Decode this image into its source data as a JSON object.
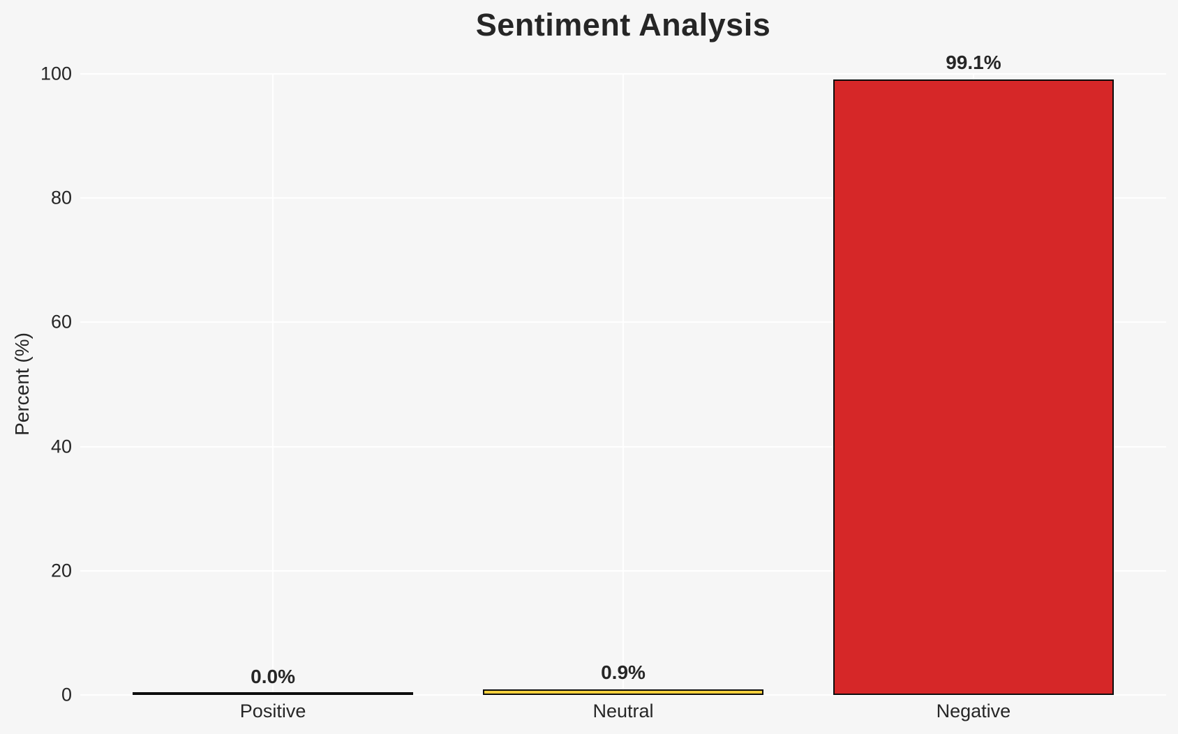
{
  "chart_data": {
    "type": "bar",
    "title": "Sentiment Analysis",
    "xlabel": "",
    "ylabel": "Percent (%)",
    "categories": [
      "Positive",
      "Neutral",
      "Negative"
    ],
    "values": [
      0.0,
      0.9,
      99.1
    ],
    "value_labels": [
      "0.0%",
      "0.9%",
      "99.1%"
    ],
    "bar_colors": [
      "#f6f6f6",
      "#f4cf3d",
      "#d62728"
    ],
    "bar_edge_color": "#0d0d0d",
    "ylim": [
      0,
      100
    ],
    "yticks": [
      0,
      20,
      40,
      60,
      80,
      100
    ],
    "grid": "on",
    "grid_color": "#ffffff",
    "background_color": "#f6f6f6",
    "legend": "none"
  }
}
